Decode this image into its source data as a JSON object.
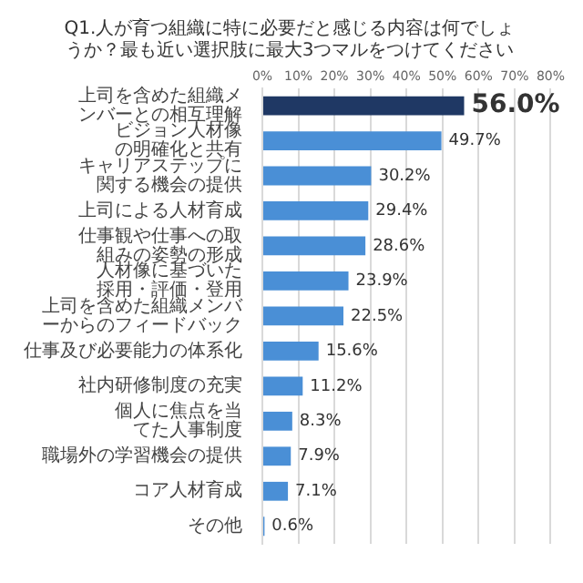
{
  "chart_data": {
    "type": "bar",
    "orientation": "horizontal",
    "title": "Q1.人が育つ組織に特に必要だと感じる内容は何でしょうか？最も近い選択肢に最大3つマルをつけてください",
    "categories": [
      "上司を含めた組織メンバーとの相互理解",
      "ビジョン人材像の明確化と共有",
      "キャリアステップに関する機会の提供",
      "上司による人材育成",
      "仕事観や仕事への取組みの姿勢の形成",
      "人材像に基づいた採用・評価・登用",
      "上司を含めた組織メンバーからのフィードバック",
      "仕事及び必要能力の体系化",
      "社内研修制度の充実",
      "個人に焦点を当てた人事制度",
      "職場外の学習機会の提供",
      "コア人材育成",
      "その他"
    ],
    "values": [
      56.0,
      49.7,
      30.2,
      29.4,
      28.6,
      23.9,
      22.5,
      15.6,
      11.2,
      8.3,
      7.9,
      7.1,
      0.6
    ],
    "colors": [
      "#1f3864",
      "#4a8fd6",
      "#4a8fd6",
      "#4a8fd6",
      "#4a8fd6",
      "#4a8fd6",
      "#4a8fd6",
      "#4a8fd6",
      "#4a8fd6",
      "#4a8fd6",
      "#4a8fd6",
      "#4a8fd6",
      "#4a8fd6"
    ],
    "value_labels": [
      "56.0%",
      "49.7%",
      "30.2%",
      "29.4%",
      "28.6%",
      "23.9%",
      "22.5%",
      "15.6%",
      "11.2%",
      "8.3%",
      "7.9%",
      "7.1%",
      "0.6%"
    ],
    "xlim": [
      0,
      80
    ],
    "xticks": [
      {
        "value": 0,
        "label": "0%"
      },
      {
        "value": 10,
        "label": "10%"
      },
      {
        "value": 20,
        "label": "20%"
      },
      {
        "value": 30,
        "label": "30%"
      },
      {
        "value": 40,
        "label": "40%"
      },
      {
        "value": 50,
        "label": "50%"
      },
      {
        "value": 60,
        "label": "60%"
      },
      {
        "value": 70,
        "label": "70%"
      },
      {
        "value": 80,
        "label": "80%"
      }
    ],
    "grid": "x",
    "legend": false
  }
}
